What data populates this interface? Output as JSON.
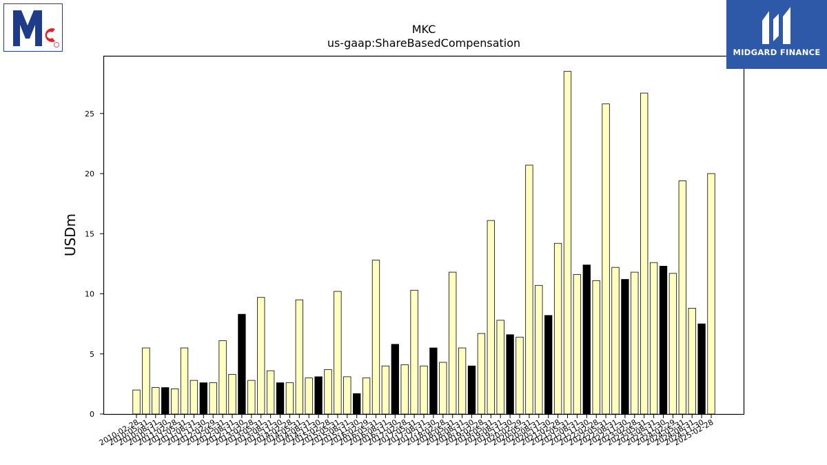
{
  "logos": {
    "left": {
      "name": "McCormick",
      "text": "Mc"
    },
    "right": {
      "name": "Midgard Finance",
      "text": "MIDGARD FINANCE"
    }
  },
  "chart_data": {
    "type": "bar",
    "title": "MKC",
    "subtitle": "us-gaap:ShareBasedCompensation",
    "xlabel": "",
    "ylabel": "USDm",
    "ylim": [
      0,
      29.8
    ],
    "yticks": [
      0,
      5,
      10,
      15,
      20,
      25
    ],
    "grid": false,
    "legend": "none",
    "colors": {
      "light": "#ffffc0",
      "dark": "#000000",
      "edge": "#000000"
    },
    "categories": [
      "2010-02-28",
      "2010-05-31",
      "2010-08-31",
      "2010-11-30",
      "2011-02-28",
      "2011-05-31",
      "2011-08-31",
      "2011-11-30",
      "2012-02-29",
      "2012-05-31",
      "2012-08-31",
      "2012-11-30",
      "2013-02-28",
      "2013-05-31",
      "2013-08-31",
      "2013-11-30",
      "2014-02-28",
      "2014-05-31",
      "2014-08-31",
      "2014-11-30",
      "2015-02-28",
      "2015-05-31",
      "2015-08-31",
      "2015-11-30",
      "2016-02-29",
      "2016-05-31",
      "2016-08-31",
      "2016-11-30",
      "2017-02-28",
      "2017-05-31",
      "2017-08-31",
      "2017-11-30",
      "2018-02-28",
      "2018-05-31",
      "2018-08-31",
      "2018-11-30",
      "2019-02-28",
      "2019-05-31",
      "2019-08-31",
      "2019-11-30",
      "2020-02-29",
      "2020-05-31",
      "2020-08-31",
      "2020-11-30",
      "2021-02-28",
      "2021-05-31",
      "2021-08-31",
      "2021-11-30",
      "2022-02-28",
      "2022-05-31",
      "2022-08-31",
      "2022-11-30",
      "2023-02-28",
      "2023-05-31",
      "2023-08-31",
      "2023-11-30",
      "2024-02-29",
      "2024-05-31",
      "2024-08-31",
      "2024-11-30",
      "2025-02-28"
    ],
    "values": [
      2.0,
      5.5,
      2.2,
      2.2,
      2.1,
      5.5,
      2.8,
      2.6,
      2.6,
      6.1,
      3.3,
      8.3,
      2.8,
      9.7,
      3.6,
      2.6,
      2.6,
      9.5,
      3.0,
      3.1,
      3.7,
      10.2,
      3.1,
      1.7,
      3.0,
      12.8,
      4.0,
      5.8,
      4.1,
      10.3,
      4.0,
      5.5,
      4.3,
      11.8,
      5.5,
      4.0,
      6.7,
      16.1,
      7.8,
      6.6,
      6.4,
      20.7,
      10.7,
      8.2,
      14.2,
      28.5,
      11.6,
      12.4,
      11.1,
      25.8,
      12.2,
      11.2,
      11.8,
      26.7,
      12.6,
      12.3,
      11.7,
      19.4,
      8.8,
      7.5,
      20.0
    ],
    "highlight": [
      false,
      false,
      false,
      true,
      false,
      false,
      false,
      true,
      false,
      false,
      false,
      true,
      false,
      false,
      false,
      true,
      false,
      false,
      false,
      true,
      false,
      false,
      false,
      true,
      false,
      false,
      false,
      true,
      false,
      false,
      false,
      true,
      false,
      false,
      false,
      true,
      false,
      false,
      false,
      true,
      false,
      false,
      false,
      true,
      false,
      false,
      false,
      true,
      false,
      false,
      false,
      true,
      false,
      false,
      false,
      true,
      false,
      false,
      false,
      true,
      false
    ]
  }
}
